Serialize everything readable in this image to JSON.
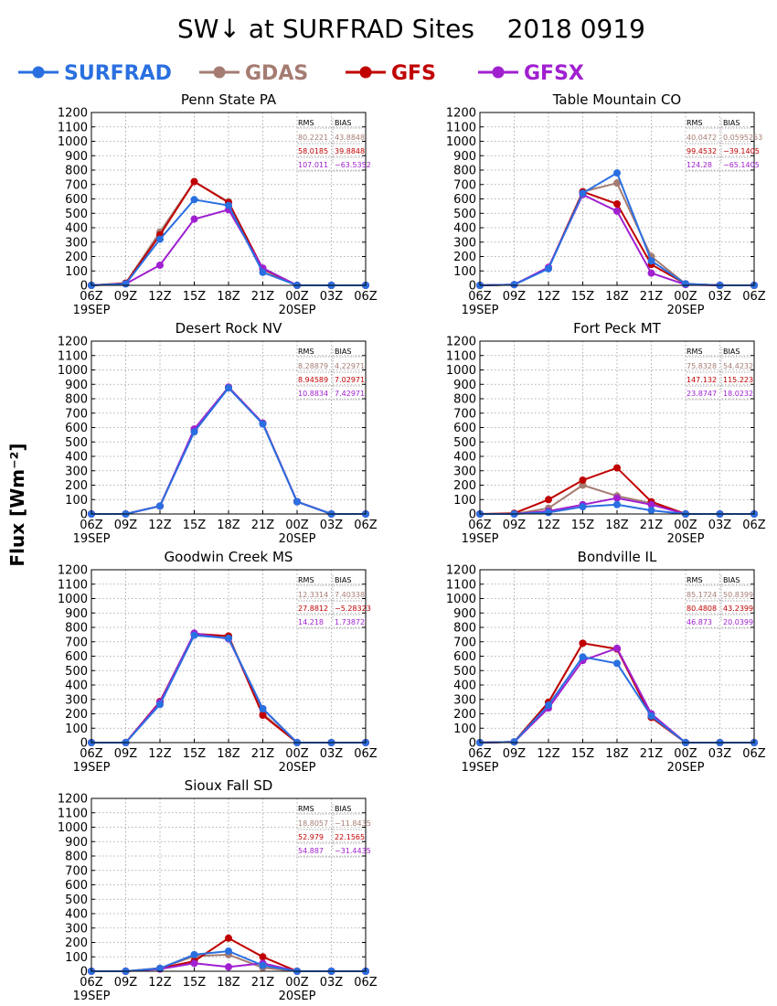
{
  "title": "SW↓ at SURFRAD Sites    2018 0919",
  "ylabel": "Flux [Wm⁻²]",
  "legend": [
    {
      "name": "SURFRAD",
      "color": "#2a6fe0"
    },
    {
      "name": "GDAS",
      "color": "#a57c72"
    },
    {
      "name": "GFS",
      "color": "#c00000"
    },
    {
      "name": "GFSX",
      "color": "#a020d0"
    }
  ],
  "stat_headers": {
    "rms": "RMS",
    "bias": "BIAS"
  },
  "chart_data": [
    {
      "type": "line",
      "title": "Penn State PA",
      "x": [
        "06Z",
        "09Z",
        "12Z",
        "15Z",
        "18Z",
        "21Z",
        "00Z",
        "03Z",
        "06Z"
      ],
      "x_dates": [
        "19SEP",
        "20SEP"
      ],
      "ylim": [
        0,
        1200
      ],
      "ytick_step": 100,
      "grid": true,
      "series": [
        {
          "name": "SURFRAD",
          "values": [
            0,
            10,
            320,
            595,
            555,
            90,
            0,
            0,
            0
          ]
        },
        {
          "name": "GDAS",
          "values": [
            0,
            15,
            370,
            720,
            580,
            110,
            0,
            0,
            0
          ]
        },
        {
          "name": "GFS",
          "values": [
            0,
            15,
            350,
            720,
            575,
            115,
            0,
            0,
            0
          ]
        },
        {
          "name": "GFSX",
          "values": [
            0,
            10,
            140,
            460,
            525,
            120,
            0,
            0,
            0
          ]
        }
      ],
      "stats": [
        {
          "rms": "80.2221",
          "bias": "43.8848"
        },
        {
          "rms": "58.0185",
          "bias": "39.8848"
        },
        {
          "rms": "107.011",
          "bias": "−63.5352"
        }
      ]
    },
    {
      "type": "line",
      "title": "Table Mountain CO",
      "x": [
        "06Z",
        "09Z",
        "12Z",
        "15Z",
        "18Z",
        "21Z",
        "00Z",
        "03Z",
        "06Z"
      ],
      "x_dates": [
        "19SEP",
        "20SEP"
      ],
      "ylim": [
        0,
        1200
      ],
      "ytick_step": 100,
      "grid": true,
      "series": [
        {
          "name": "SURFRAD",
          "values": [
            0,
            5,
            115,
            640,
            780,
            170,
            10,
            0,
            0
          ]
        },
        {
          "name": "GDAS",
          "values": [
            0,
            5,
            120,
            650,
            710,
            200,
            10,
            0,
            0
          ]
        },
        {
          "name": "GFS",
          "values": [
            0,
            5,
            120,
            650,
            565,
            145,
            10,
            0,
            0
          ]
        },
        {
          "name": "GFSX",
          "values": [
            0,
            5,
            125,
            630,
            515,
            85,
            5,
            0,
            0
          ]
        }
      ],
      "stats": [
        {
          "rms": "40.0472",
          "bias": "0.0595253"
        },
        {
          "rms": "99.4532",
          "bias": "−39.1405"
        },
        {
          "rms": "124.28",
          "bias": "−65.1405"
        }
      ]
    },
    {
      "type": "line",
      "title": "Desert Rock NV",
      "x": [
        "06Z",
        "09Z",
        "12Z",
        "15Z",
        "18Z",
        "21Z",
        "00Z",
        "03Z",
        "06Z"
      ],
      "x_dates": [
        "19SEP",
        "20SEP"
      ],
      "ylim": [
        0,
        1200
      ],
      "ytick_step": 100,
      "grid": true,
      "series": [
        {
          "name": "SURFRAD",
          "values": [
            0,
            0,
            55,
            570,
            875,
            625,
            85,
            0,
            0
          ]
        },
        {
          "name": "GDAS",
          "values": [
            0,
            0,
            55,
            580,
            880,
            630,
            85,
            0,
            0
          ]
        },
        {
          "name": "GFS",
          "values": [
            0,
            0,
            55,
            580,
            880,
            630,
            85,
            0,
            0
          ]
        },
        {
          "name": "GFSX",
          "values": [
            0,
            0,
            55,
            590,
            880,
            630,
            85,
            0,
            0
          ]
        }
      ],
      "stats": [
        {
          "rms": "8.28879",
          "bias": "4.22971"
        },
        {
          "rms": "8.94589",
          "bias": "7.02971"
        },
        {
          "rms": "10.8834",
          "bias": "7.42971"
        }
      ]
    },
    {
      "type": "line",
      "title": "Fort Peck MT",
      "x": [
        "06Z",
        "09Z",
        "12Z",
        "15Z",
        "18Z",
        "21Z",
        "00Z",
        "03Z",
        "06Z"
      ],
      "x_dates": [
        "19SEP",
        "20SEP"
      ],
      "ylim": [
        0,
        1200
      ],
      "ytick_step": 100,
      "grid": true,
      "series": [
        {
          "name": "SURFRAD",
          "values": [
            0,
            0,
            10,
            50,
            65,
            25,
            0,
            0,
            0
          ]
        },
        {
          "name": "GDAS",
          "values": [
            0,
            0,
            40,
            200,
            125,
            75,
            0,
            0,
            0
          ]
        },
        {
          "name": "GFS",
          "values": [
            0,
            5,
            100,
            235,
            320,
            85,
            0,
            0,
            0
          ]
        },
        {
          "name": "GFSX",
          "values": [
            0,
            0,
            20,
            65,
            110,
            65,
            0,
            0,
            0
          ]
        }
      ],
      "stats": [
        {
          "rms": "75.8328",
          "bias": "54.4232"
        },
        {
          "rms": "147.132",
          "bias": "115.223"
        },
        {
          "rms": "23.8747",
          "bias": "18.0232"
        }
      ]
    },
    {
      "type": "line",
      "title": "Goodwin Creek MS",
      "x": [
        "06Z",
        "09Z",
        "12Z",
        "15Z",
        "18Z",
        "21Z",
        "00Z",
        "03Z",
        "06Z"
      ],
      "x_dates": [
        "19SEP",
        "20SEP"
      ],
      "ylim": [
        0,
        1200
      ],
      "ytick_step": 100,
      "grid": true,
      "series": [
        {
          "name": "SURFRAD",
          "values": [
            0,
            0,
            265,
            745,
            725,
            235,
            0,
            0,
            0
          ]
        },
        {
          "name": "GDAS",
          "values": [
            0,
            0,
            285,
            755,
            740,
            200,
            0,
            0,
            0
          ]
        },
        {
          "name": "GFS",
          "values": [
            0,
            0,
            285,
            755,
            740,
            190,
            0,
            0,
            0
          ]
        },
        {
          "name": "GFSX",
          "values": [
            0,
            0,
            280,
            760,
            720,
            235,
            0,
            0,
            0
          ]
        }
      ],
      "stats": [
        {
          "rms": "12.3314",
          "bias": "7.40338"
        },
        {
          "rms": "27.8812",
          "bias": "−5.28323"
        },
        {
          "rms": "14.218",
          "bias": "1.73872"
        }
      ]
    },
    {
      "type": "line",
      "title": "Bondville IL",
      "x": [
        "06Z",
        "09Z",
        "12Z",
        "15Z",
        "18Z",
        "21Z",
        "00Z",
        "03Z",
        "06Z"
      ],
      "x_dates": [
        "19SEP",
        "20SEP"
      ],
      "ylim": [
        0,
        1200
      ],
      "ytick_step": 100,
      "grid": true,
      "series": [
        {
          "name": "SURFRAD",
          "values": [
            0,
            5,
            260,
            595,
            550,
            185,
            0,
            0,
            0
          ]
        },
        {
          "name": "GDAS",
          "values": [
            0,
            5,
            280,
            690,
            650,
            175,
            0,
            0,
            0
          ]
        },
        {
          "name": "GFS",
          "values": [
            0,
            5,
            280,
            690,
            650,
            175,
            0,
            0,
            0
          ]
        },
        {
          "name": "GFSX",
          "values": [
            0,
            5,
            240,
            570,
            655,
            200,
            0,
            0,
            0
          ]
        }
      ],
      "stats": [
        {
          "rms": "85.1724",
          "bias": "50.8399"
        },
        {
          "rms": "80.4808",
          "bias": "43.2399"
        },
        {
          "rms": "46.873",
          "bias": "20.0399"
        }
      ]
    },
    {
      "type": "line",
      "title": "Sioux Fall SD",
      "x": [
        "06Z",
        "09Z",
        "12Z",
        "15Z",
        "18Z",
        "21Z",
        "00Z",
        "03Z",
        "06Z"
      ],
      "x_dates": [
        "19SEP",
        "20SEP"
      ],
      "ylim": [
        0,
        1200
      ],
      "ytick_step": 100,
      "grid": true,
      "series": [
        {
          "name": "SURFRAD",
          "values": [
            0,
            0,
            20,
            115,
            140,
            40,
            0,
            0,
            0
          ]
        },
        {
          "name": "GDAS",
          "values": [
            0,
            0,
            20,
            105,
            115,
            25,
            0,
            0,
            0
          ]
        },
        {
          "name": "GFS",
          "values": [
            0,
            0,
            20,
            70,
            230,
            100,
            0,
            0,
            0
          ]
        },
        {
          "name": "GFSX",
          "values": [
            0,
            0,
            15,
            55,
            30,
            55,
            0,
            0,
            0
          ]
        }
      ],
      "stats": [
        {
          "rms": "18.8057",
          "bias": "−11.8435"
        },
        {
          "rms": "52.979",
          "bias": "22.1565"
        },
        {
          "rms": "54.887",
          "bias": "−31.4435"
        }
      ]
    }
  ]
}
